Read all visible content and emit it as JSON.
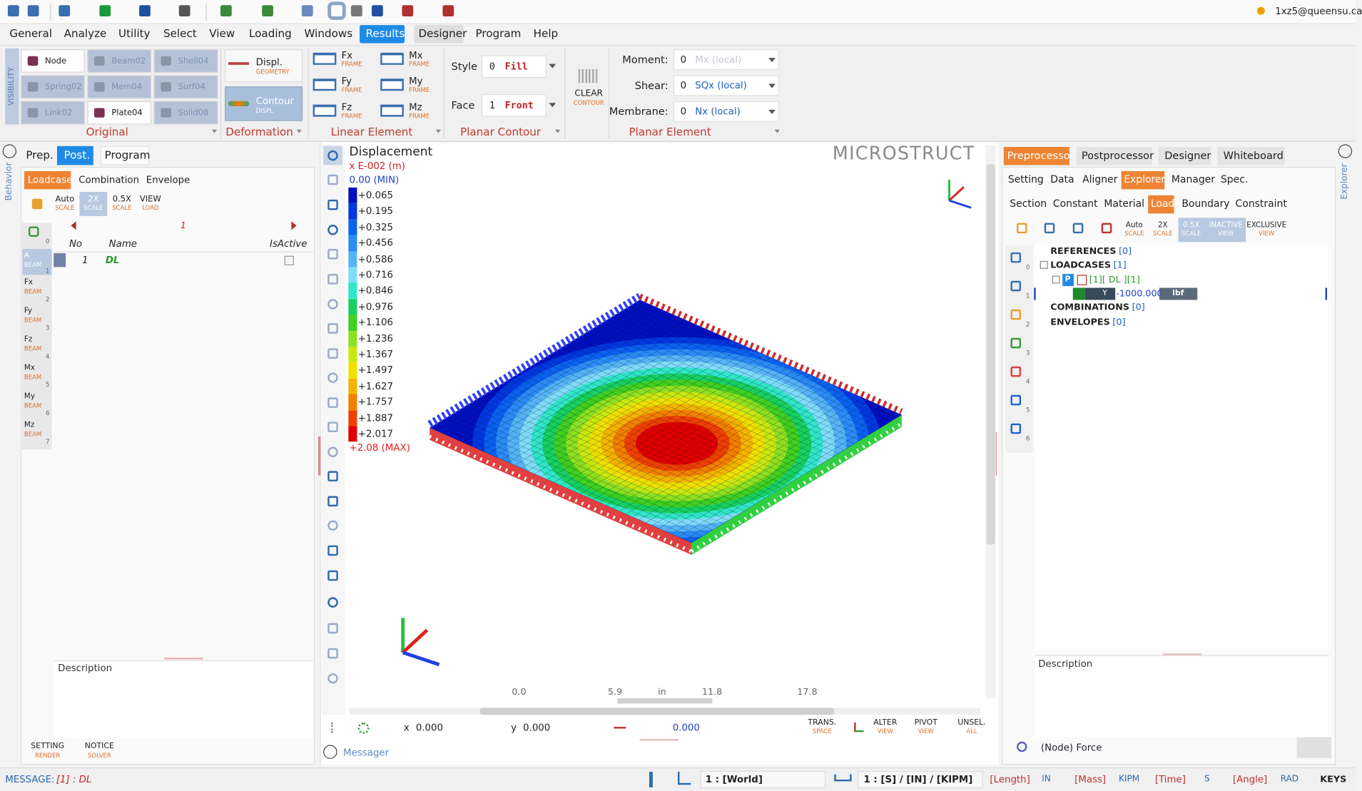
{
  "header": {
    "user": "1xz5@queensu.ca"
  },
  "menu": [
    "General",
    "Analyze",
    "Utility",
    "Select",
    "View",
    "Loading",
    "Windows",
    "Results",
    "Designer",
    "Program",
    "Help"
  ],
  "ribbon": {
    "visibility": "VISIBILITY",
    "original_buttons": [
      "Node",
      "Beam02",
      "Shell04",
      "Spring02",
      "Mem04",
      "Surf04",
      "Link02",
      "Plate04",
      "Solid08"
    ],
    "groups": [
      "Original",
      "Deformation",
      "Linear Element",
      "Planar Contour",
      "Planar Element"
    ],
    "deformation_buttons": [
      {
        "label": "Displ.",
        "sub": "GEOMETRY"
      },
      {
        "label": "Contour",
        "sub": "DISPL"
      }
    ],
    "linear_buttons": [
      {
        "label": "Fx",
        "sub": "FRAME"
      },
      {
        "label": "Fy",
        "sub": "FRAME"
      },
      {
        "label": "Fz",
        "sub": "FRAME"
      },
      {
        "label": "Mx",
        "sub": "FRAME"
      },
      {
        "label": "My",
        "sub": "FRAME"
      },
      {
        "label": "Mz",
        "sub": "FRAME"
      }
    ],
    "planar_contour": [
      {
        "label": "Style",
        "index": 0,
        "value": "Fill"
      },
      {
        "label": "Face",
        "index": 1,
        "value": "Front"
      }
    ],
    "clear": {
      "label": "CLEAR",
      "sub": "CONTOUR"
    },
    "planar_element": [
      {
        "label": "Moment:",
        "index": 0,
        "value": "Mx (local)"
      },
      {
        "label": "Shear:",
        "index": 0,
        "value": "SQx (local)"
      },
      {
        "label": "Membrane:",
        "index": 0,
        "value": "Nx (local)"
      }
    ]
  },
  "left_panel": {
    "vertical": "Behavior",
    "tabs": [
      "Prep.",
      "Post.",
      "Program"
    ],
    "subtabs": [
      "Loadcase",
      "Combination",
      "Envelope"
    ],
    "scale_buttons": [
      {
        "label": "Auto",
        "sub": "SCALE"
      },
      {
        "label": "2X",
        "sub": "SCALE"
      },
      {
        "label": "0.5X",
        "sub": "SCALE"
      },
      {
        "label": "VIEW",
        "sub": "LOAD"
      }
    ],
    "page": 1,
    "table": {
      "headers": [
        "No",
        "Name",
        "IsActive"
      ],
      "rows": [
        [
          1,
          "DL"
        ]
      ]
    },
    "side_items": [
      {
        "label": "A",
        "sub": "BEAM"
      },
      {
        "label": "Fx",
        "sub": "BEAM"
      },
      {
        "label": "Fy",
        "sub": "BEAM"
      },
      {
        "label": "Fz",
        "sub": "BEAM"
      },
      {
        "label": "Mx",
        "sub": "BEAM"
      },
      {
        "label": "My",
        "sub": "BEAM"
      },
      {
        "label": "Mz",
        "sub": "BEAM"
      }
    ],
    "side_index": [
      0,
      1,
      2,
      3,
      4,
      5,
      6,
      7
    ],
    "description": "Description",
    "footer_buttons": [
      {
        "label": "SETTING",
        "sub": "RENDER"
      },
      {
        "label": "NOTICE",
        "sub": "SOLVER"
      }
    ]
  },
  "viewport": {
    "title": "Displacement",
    "unit": "x E-002 (m)",
    "min": "0.00 (MIN)",
    "legend": [
      {
        "label": "+0.065",
        "color": "#0010c0"
      },
      {
        "label": "+0.195",
        "color": "#0038e0"
      },
      {
        "label": "+0.325",
        "color": "#0a62f0"
      },
      {
        "label": "+0.456",
        "color": "#2a8cf5"
      },
      {
        "label": "+0.586",
        "color": "#55b4f5"
      },
      {
        "label": "+0.716",
        "color": "#7fdcf8"
      },
      {
        "label": "+0.846",
        "color": "#30e6c8"
      },
      {
        "label": "+0.976",
        "color": "#18d060"
      },
      {
        "label": "+1.106",
        "color": "#40d020"
      },
      {
        "label": "+1.236",
        "color": "#8ee020"
      },
      {
        "label": "+1.367",
        "color": "#c8e810"
      },
      {
        "label": "+1.497",
        "color": "#f0e000"
      },
      {
        "label": "+1.627",
        "color": "#f4b400"
      },
      {
        "label": "+1.757",
        "color": "#f48000"
      },
      {
        "label": "+1.887",
        "color": "#f04000"
      },
      {
        "label": "+2.017",
        "color": "#e00000"
      }
    ],
    "max": "+2.08 (MAX)",
    "brand": "MICROSTRUCT",
    "ruler": [
      "0.0",
      "5.9",
      "in",
      "11.8",
      "17.8"
    ],
    "coords": {
      "x_label": "x",
      "x_value": "0.000",
      "y_label": "y",
      "y_value": "0.000",
      "dist_value": "0.000"
    },
    "tools": [
      {
        "label": "TRANS.",
        "sub": "SPACE"
      },
      {
        "label": "ALTER",
        "sub": "VIEW"
      },
      {
        "label": "PIVOT",
        "sub": "VIEW"
      },
      {
        "label": "UNSEL.",
        "sub": "ALL"
      }
    ],
    "messager": "Messager"
  },
  "right_panel": {
    "vertical": "Explorer",
    "tabs": [
      "Preprocessor",
      "Postprocessor",
      "Designer",
      "Whiteboard"
    ],
    "subtabs": [
      "Setting",
      "Data",
      "Aligner",
      "Explorer",
      "Manager",
      "Spec."
    ],
    "subtabs2": [
      "Section",
      "Constant",
      "Material",
      "Load",
      "Boundary",
      "Constraint"
    ],
    "scale_buttons": [
      {
        "label": "Auto",
        "sub": "SCALE"
      },
      {
        "label": "2X",
        "sub": "SCALE"
      },
      {
        "label": "0.5X",
        "sub": "SCALE"
      },
      {
        "label": "INACTIVE",
        "sub": "VIEW"
      },
      {
        "label": "EXCLUSIVE",
        "sub": "VIEW"
      }
    ],
    "side_index": [
      0,
      1,
      2,
      3,
      4,
      5,
      6
    ],
    "tree": {
      "references": {
        "label": "REFERENCES",
        "count": "[0]"
      },
      "loadcases": {
        "label": "LOADCASES",
        "count": "[1]"
      },
      "loadcase": {
        "badge": "P",
        "text": "[1][ DL ][1]"
      },
      "load": {
        "axis": "Y",
        "value": "-1000.000",
        "unit": "lbf"
      },
      "combinations": {
        "label": "COMBINATIONS",
        "count": "[0]"
      },
      "envelopes": {
        "label": "ENVELOPES",
        "count": "[0]"
      }
    },
    "description": "Description",
    "footer": "(Node) Force"
  },
  "status": {
    "message_label": "MESSAGE:",
    "message": "[1] : DL",
    "coord_system": "1 : [World]",
    "units": "1 : [S] / [IN] / [KIPM]",
    "unit_pairs": [
      {
        "name": "[Length]",
        "value": "IN"
      },
      {
        "name": "[Mass]",
        "value": "KIPM"
      },
      {
        "name": "[Time]",
        "value": "S"
      },
      {
        "name": "[Angle]",
        "value": "RAD"
      }
    ],
    "keys": "KEYS"
  }
}
